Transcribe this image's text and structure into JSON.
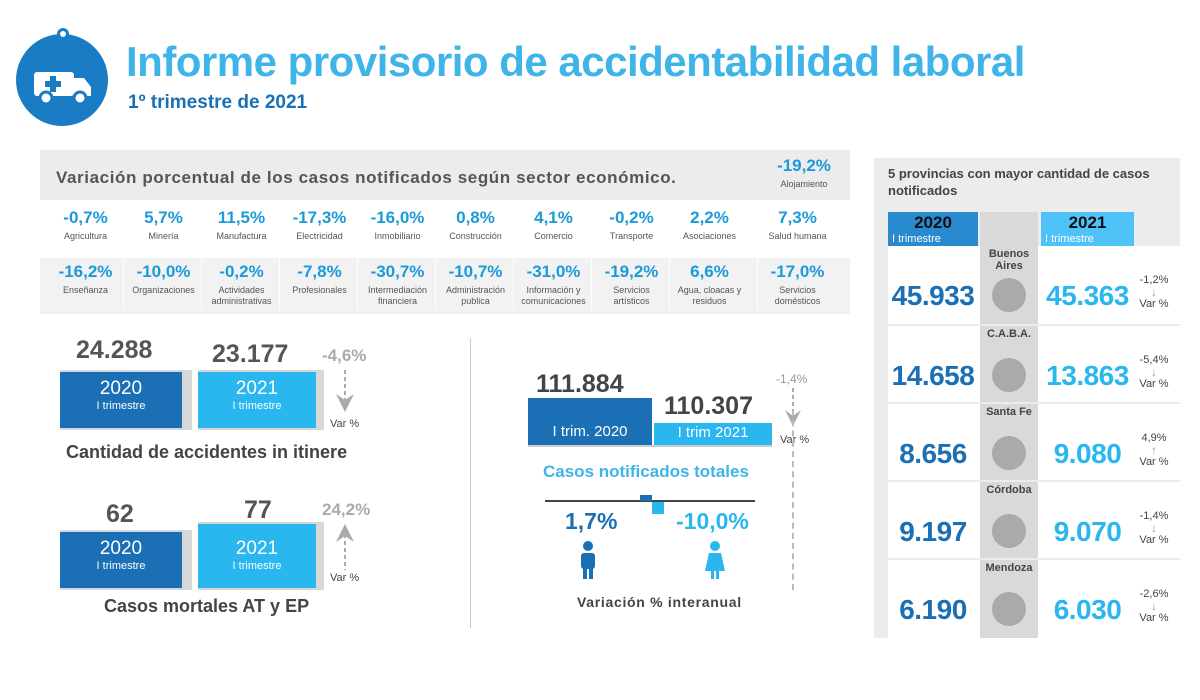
{
  "header": {
    "title": "Informe provisorio de accidentabilidad laboral",
    "subtitle": "1º trimestre de 2021",
    "icon": "ambulance-icon"
  },
  "sector": {
    "title": "Variación porcentual de los casos notificados según sector económico.",
    "alojamiento": {
      "value": "-19,2%",
      "label": "Alojamiento"
    },
    "row1": [
      {
        "value": "-0,7%",
        "label": "Agricultura"
      },
      {
        "value": "5,7%",
        "label": "Minería"
      },
      {
        "value": "11,5%",
        "label": "Manufactura"
      },
      {
        "value": "-17,3%",
        "label": "Electricidad"
      },
      {
        "value": "-16,0%",
        "label": "Inmobiliario"
      },
      {
        "value": "0,8%",
        "label": "Construcción"
      },
      {
        "value": "4,1%",
        "label": "Comercio"
      },
      {
        "value": "-0,2%",
        "label": "Transporte"
      },
      {
        "value": "2,2%",
        "label": "Asociaciones"
      },
      {
        "value": "7,3%",
        "label": "Salud humana"
      }
    ],
    "row2": [
      {
        "value": "-16,2%",
        "label": "Enseñanza"
      },
      {
        "value": "-10,0%",
        "label": "Organizaciones"
      },
      {
        "value": "-0,2%",
        "label": "Actividades administrativas"
      },
      {
        "value": "-7,8%",
        "label": "Profesionales"
      },
      {
        "value": "-30,7%",
        "label": "Intermediación financiera"
      },
      {
        "value": "-10,7%",
        "label": "Administración publica"
      },
      {
        "value": "-31,0%",
        "label": "Información y comunicaciones"
      },
      {
        "value": "-19,2%",
        "label": "Servicios artísticos"
      },
      {
        "value": "6,6%",
        "label": "Agua, cloacas y residuos"
      },
      {
        "value": "-17,0%",
        "label": "Servicios domésticos"
      }
    ]
  },
  "itinere": {
    "v2020": "24.288",
    "v2021": "23.177",
    "var": "-4,6%",
    "var_label": "Var %",
    "y2020": "2020",
    "y2021": "2021",
    "trim": "I trimestre",
    "caption": "Cantidad de accidentes in itinere"
  },
  "mortales": {
    "v2020": "62",
    "v2021": "77",
    "var": "24,2%",
    "var_label": "Var %",
    "y2020": "2020",
    "y2021": "2021",
    "trim": "I trimestre",
    "caption": "Casos mortales AT y EP"
  },
  "totales": {
    "v2020": "111.884",
    "v2021": "110.307",
    "l2020": "I trim. 2020",
    "l2021": "I trim 2021",
    "var": "-1,4%",
    "var_label": "Var %",
    "caption": "Casos notificados totales",
    "male": "1,7%",
    "female": "-10,0%",
    "footer": "Variación %  interanual"
  },
  "provincias": {
    "title": "5 provincias con mayor cantidad de casos notificados",
    "h2020": "2020",
    "h2021": "2021",
    "trim": "I trimestre",
    "rows": [
      {
        "name": "Buenos Aires",
        "v2020": "45.933",
        "v2021": "45.363",
        "var": "-1,2%",
        "arrow": "↓",
        "var_label": "Var %"
      },
      {
        "name": "C.A.B.A.",
        "v2020": "14.658",
        "v2021": "13.863",
        "var": "-5,4%",
        "arrow": "↓",
        "var_label": "Var %"
      },
      {
        "name": "Santa Fe",
        "v2020": "8.656",
        "v2021": "9.080",
        "var": "4,9%",
        "arrow": "↑",
        "var_label": "Var %"
      },
      {
        "name": "Córdoba",
        "v2020": "9.197",
        "v2021": "9.070",
        "var": "-1,4%",
        "arrow": "↓",
        "var_label": "Var %"
      },
      {
        "name": "Mendoza",
        "v2020": "6.190",
        "v2021": "6.030",
        "var": "-2,6%",
        "arrow": "↓",
        "var_label": "Var %"
      }
    ]
  },
  "colors": {
    "dark_blue": "#1a6fb5",
    "light_blue": "#2ab6ee",
    "title_blue": "#3fb4e8"
  }
}
